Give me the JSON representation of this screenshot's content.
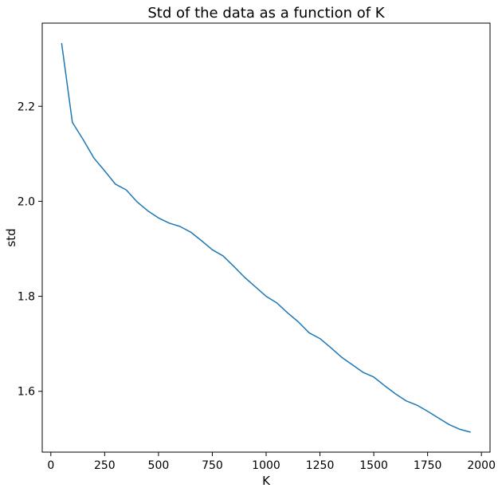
{
  "chart_data": {
    "type": "line",
    "title": "Std of the data as a function of K",
    "xlabel": "K",
    "ylabel": "std",
    "xlim": [
      -40,
      2040
    ],
    "ylim": [
      1.472,
      2.375
    ],
    "xticks": [
      0,
      250,
      500,
      750,
      1000,
      1250,
      1500,
      1750,
      2000
    ],
    "xtick_labels": [
      "0",
      "250",
      "500",
      "750",
      "1000",
      "1250",
      "1500",
      "1750",
      "2000"
    ],
    "yticks": [
      1.6,
      1.8,
      2.0,
      2.2
    ],
    "ytick_labels": [
      "1.6",
      "1.8",
      "2.0",
      "2.2"
    ],
    "grid": false,
    "series": [
      {
        "color": "#1f77b4",
        "x": [
          50,
          100,
          150,
          200,
          250,
          300,
          350,
          400,
          450,
          500,
          550,
          600,
          650,
          700,
          750,
          800,
          850,
          900,
          950,
          1000,
          1050,
          1100,
          1150,
          1200,
          1250,
          1300,
          1350,
          1400,
          1450,
          1500,
          1550,
          1600,
          1650,
          1700,
          1750,
          1800,
          1850,
          1900,
          1950
        ],
        "y": [
          2.333,
          2.166,
          2.13,
          2.091,
          2.064,
          2.036,
          2.024,
          1.999,
          1.98,
          1.965,
          1.954,
          1.947,
          1.935,
          1.917,
          1.898,
          1.885,
          1.863,
          1.84,
          1.82,
          1.8,
          1.786,
          1.765,
          1.746,
          1.723,
          1.711,
          1.692,
          1.672,
          1.656,
          1.64,
          1.63,
          1.612,
          1.595,
          1.58,
          1.571,
          1.558,
          1.544,
          1.53,
          1.52,
          1.514
        ]
      }
    ]
  }
}
